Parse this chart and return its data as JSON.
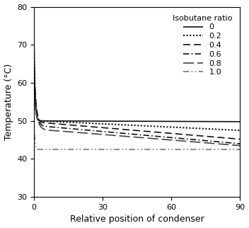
{
  "title": "",
  "xlabel": "Relative position of condenser",
  "ylabel": "Temperature (°C)",
  "xlim": [
    0,
    90
  ],
  "ylim": [
    30,
    80
  ],
  "xticks": [
    0,
    30,
    60,
    90
  ],
  "yticks": [
    30,
    40,
    50,
    60,
    70,
    80
  ],
  "legend_title": "Isobutane ratio",
  "series": [
    {
      "label": "0",
      "linestyle": "solid",
      "color": "#111111",
      "linewidth": 1.2,
      "start_y": 72.5,
      "knee_y": 50.0,
      "end_y": 49.8,
      "knee_x": 2.5
    },
    {
      "label": "0.2",
      "linestyle": "dotted",
      "color": "#111111",
      "linewidth": 1.5,
      "start_y": 71.0,
      "knee_y": 50.0,
      "end_y": 47.5,
      "knee_x": 3.0
    },
    {
      "label": "0.4",
      "linestyle": "dashed",
      "color": "#111111",
      "linewidth": 1.2,
      "start_y": 67.0,
      "knee_y": 49.5,
      "end_y": 45.2,
      "knee_x": 4.5
    },
    {
      "label": "0.6",
      "linestyle": "dashdot",
      "color": "#111111",
      "linewidth": 1.2,
      "start_y": 62.0,
      "knee_y": 48.5,
      "end_y": 44.0,
      "knee_x": 6.0
    },
    {
      "label": "0.8",
      "linestyle": "longdash",
      "color": "#444444",
      "linewidth": 1.2,
      "start_y": 57.0,
      "knee_y": 47.5,
      "end_y": 43.5,
      "knee_x": 8.0
    },
    {
      "label": "1.0",
      "linestyle": "dashdotdot",
      "color": "#777777",
      "linewidth": 1.2,
      "start_y": 50.5,
      "knee_y": 42.5,
      "end_y": 42.5,
      "knee_x": 2.0
    }
  ]
}
